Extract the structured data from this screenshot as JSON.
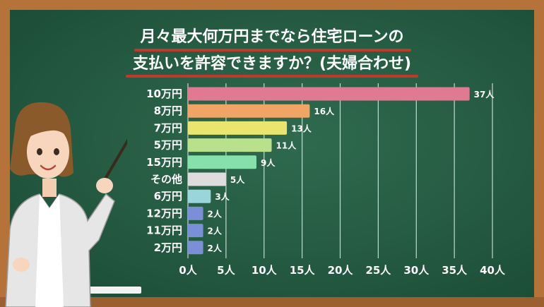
{
  "chart_data": {
    "type": "bar",
    "orientation": "horizontal",
    "title": "月々最大何万円までなら住宅ローンの支払いを許容できますか？(夫婦合わせ)",
    "title_lines": [
      "月々最大何万円までなら住宅ローンの",
      "支払いを許容できますか？(夫婦合わせ)"
    ],
    "categories": [
      "10万円",
      "8万円",
      "7万円",
      "5万円",
      "15万円",
      "その他",
      "6万円",
      "12万円",
      "11万円",
      "2万円"
    ],
    "values": [
      37,
      16,
      13,
      11,
      9,
      5,
      3,
      2,
      2,
      2
    ],
    "value_labels": [
      "37人",
      "16人",
      "13人",
      "11人",
      "9人",
      "5人",
      "3人",
      "2人",
      "2人",
      "2人"
    ],
    "bar_colors": [
      "#e07a93",
      "#f0a466",
      "#e9e56e",
      "#b9e08b",
      "#86e0aa",
      "#dddddd",
      "#9bd5dc",
      "#7b8fd6",
      "#7b8fd6",
      "#7b8fd6"
    ],
    "xlim": [
      0,
      40
    ],
    "xticks": [
      0,
      5,
      10,
      15,
      20,
      25,
      30,
      35,
      40
    ],
    "xtick_labels": [
      "0人",
      "5人",
      "10人",
      "15人",
      "20人",
      "25人",
      "30人",
      "35人",
      "40人"
    ],
    "grid": true,
    "xlabel": "",
    "ylabel": ""
  },
  "colors": {
    "board": "#245a41",
    "frame": "#b5733a",
    "title_underline": "#c0392b",
    "text": "#ffffff"
  }
}
